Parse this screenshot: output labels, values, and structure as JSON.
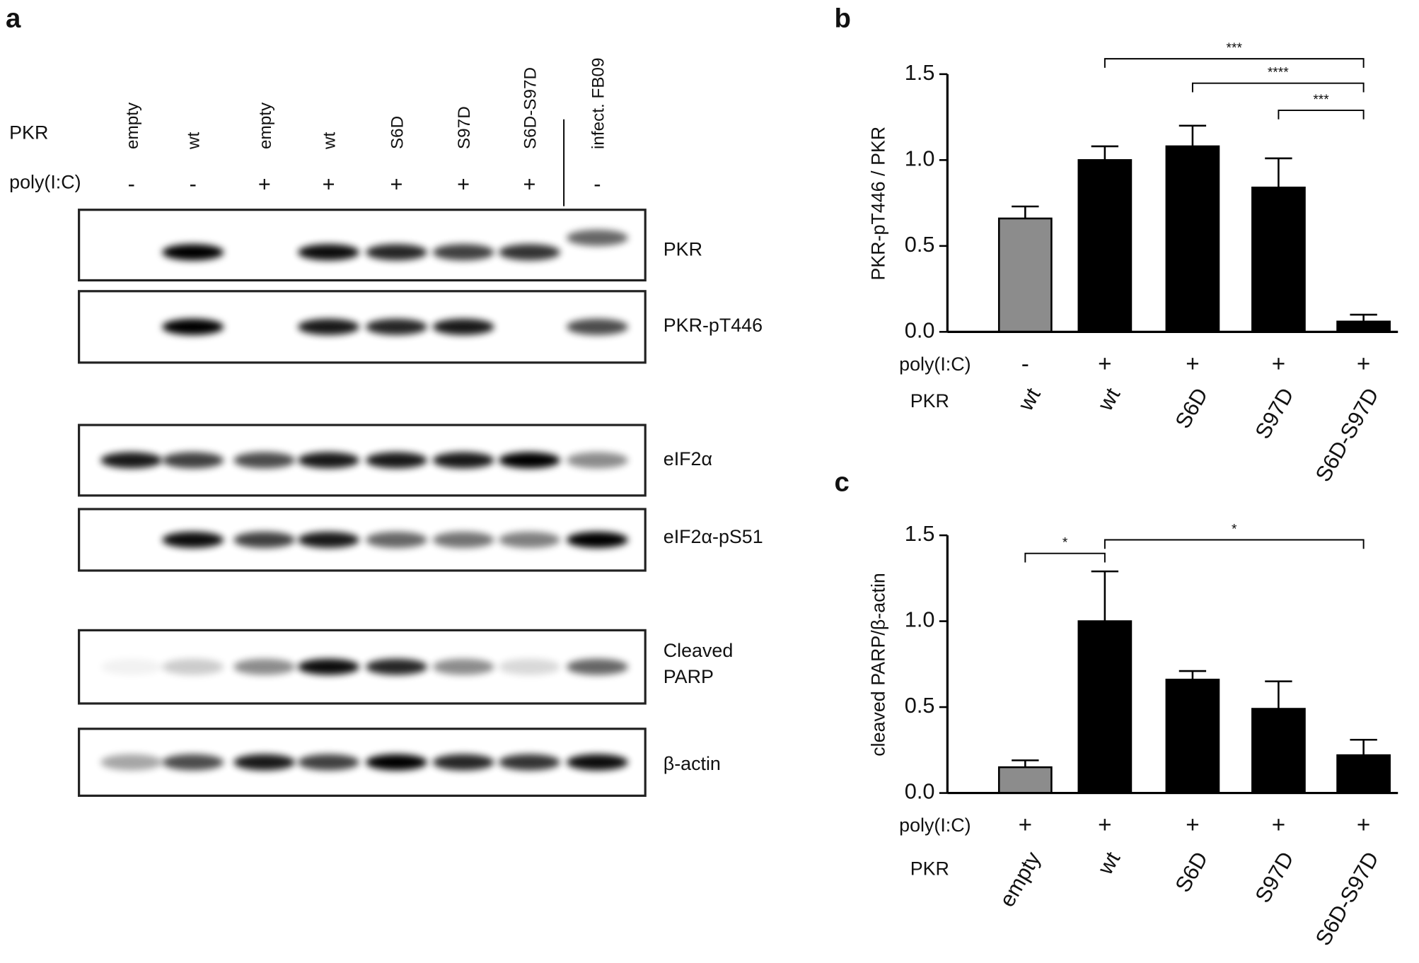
{
  "blot": {
    "panel_label": "a",
    "row_labels": [
      "PKR",
      "poly(I:C)"
    ],
    "lanes": [
      "empty",
      "wt",
      "empty",
      "wt",
      "S6D",
      "S97D",
      "S6D-S97D",
      "infect. FB09"
    ],
    "poly": [
      "-",
      "-",
      "+",
      "+",
      "+",
      "+",
      "+",
      "-"
    ],
    "blots": [
      [
        "PKR"
      ],
      [
        "PKR-pT446"
      ],
      [
        "eIF2α"
      ],
      [
        "eIF2α-pS51"
      ],
      [
        "Cleaved",
        "PARP"
      ],
      [
        "β-actin"
      ]
    ]
  },
  "chart_data": [
    {
      "type": "bar",
      "panel_label": "b",
      "ylabel": "PKR-pT446 / PKR",
      "row_labels": [
        "poly(I:C)",
        "PKR"
      ],
      "poly": [
        "-",
        "+",
        "+",
        "+",
        "+"
      ],
      "categories": [
        "wt",
        "wt",
        "S6D",
        "S97D",
        "S6D-S97D"
      ],
      "values": [
        0.66,
        1.0,
        1.08,
        0.84,
        0.06
      ],
      "errors": [
        0.07,
        0.08,
        0.12,
        0.17,
        0.04
      ],
      "colors": [
        "#8c8c8c",
        "#000000",
        "#000000",
        "#000000",
        "#000000"
      ],
      "ylim": [
        0,
        1.5
      ],
      "yticks": [
        {
          "value": 0,
          "label": "0.0"
        },
        0.5,
        {
          "value": 1,
          "label": "1.0"
        },
        1.5
      ],
      "significance": [
        {
          "from": 1,
          "to": 4,
          "label": "***"
        },
        {
          "from": 2,
          "to": 4,
          "label": "****"
        },
        {
          "from": 3,
          "to": 4,
          "label": "***"
        }
      ]
    },
    {
      "type": "bar",
      "panel_label": "c",
      "ylabel": "cleaved PARP/β-actin",
      "row_labels": [
        "poly(I:C)",
        "PKR"
      ],
      "poly": [
        "+",
        "+",
        "+",
        "+",
        "+"
      ],
      "categories": [
        "empty",
        "wt",
        "S6D",
        "S97D",
        "S6D-S97D"
      ],
      "values": [
        0.15,
        1.0,
        0.66,
        0.49,
        0.22
      ],
      "errors": [
        0.04,
        0.29,
        0.05,
        0.16,
        0.09
      ],
      "colors": [
        "#8c8c8c",
        "#000000",
        "#000000",
        "#000000",
        "#000000"
      ],
      "ylim": [
        0,
        1.5
      ],
      "yticks": [
        {
          "value": 0,
          "label": "0.0"
        },
        0.5,
        {
          "value": 1,
          "label": "1.0"
        },
        1.5
      ],
      "significance": [
        {
          "from": 0,
          "to": 1,
          "label": "*"
        },
        {
          "from": 1,
          "to": 4,
          "label": "*"
        }
      ]
    }
  ]
}
